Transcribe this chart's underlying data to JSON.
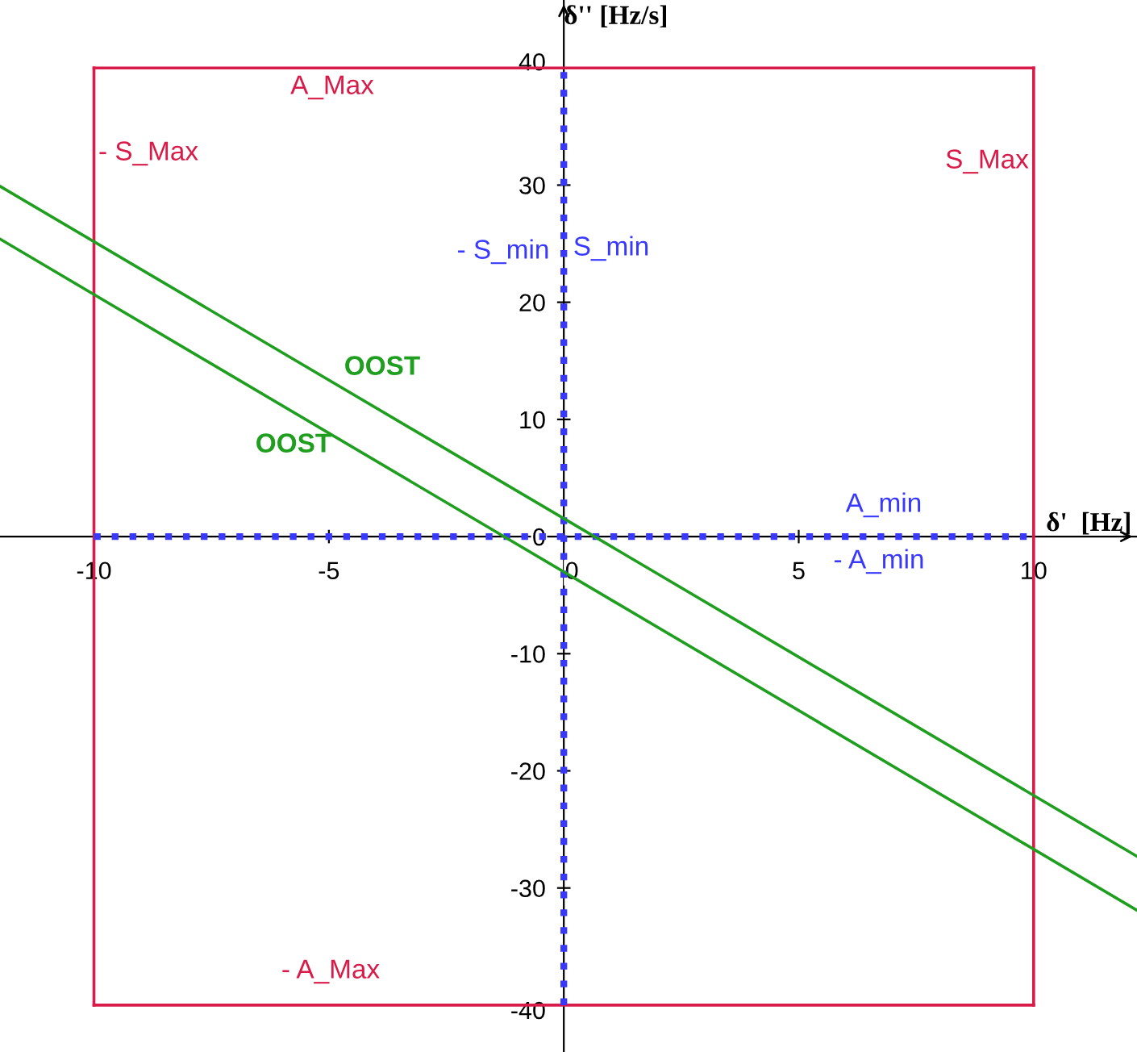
{
  "chart_data": {
    "type": "line",
    "xlabel": "δ'  [Hz]",
    "ylabel": "δ'' [Hz/s]",
    "xlim": [
      -12,
      12.2
    ],
    "ylim": [
      -44,
      45.8
    ],
    "xticks": [
      -10,
      -5,
      0,
      5,
      10
    ],
    "yticks": [
      -40,
      -30,
      -20,
      -10,
      0,
      10,
      20,
      30,
      40
    ],
    "grid": false,
    "legend": false,
    "marker": "none",
    "series": [
      {
        "color": "#d81b48",
        "line_style": "solid",
        "x": [
          -10,
          10
        ],
        "values": [
          40,
          40
        ]
      },
      {
        "color": "#d81b48",
        "line_style": "solid",
        "x": [
          -10,
          10
        ],
        "values": [
          -40,
          -40
        ]
      },
      {
        "color": "#d81b48",
        "line_style": "solid",
        "x": [
          -10,
          -10
        ],
        "values": [
          -40,
          40
        ]
      },
      {
        "color": "#d81b48",
        "line_style": "solid",
        "x": [
          10,
          10
        ],
        "values": [
          -40,
          40
        ]
      },
      {
        "color": "#3838ff",
        "line_style": "dotted",
        "x": [
          -10,
          10
        ],
        "values": [
          0,
          0
        ]
      },
      {
        "color": "#3838ff",
        "line_style": "dotted",
        "x": [
          0,
          0
        ],
        "values": [
          -40,
          40
        ]
      },
      {
        "color": "#1f9e1f",
        "line_style": "solid",
        "x": [
          -12,
          12.2
        ],
        "values": [
          29.9,
          -27.3
        ]
      },
      {
        "color": "#1f9e1f",
        "line_style": "solid",
        "x": [
          -12,
          12.2
        ],
        "values": [
          25.4,
          -31.9
        ]
      }
    ],
    "annotations": [
      "A_Max",
      "- S_Max",
      "S_Max",
      "- A_Max",
      "- S_min",
      "S_min",
      "A_min",
      "- A_min",
      "OOST",
      "OOST"
    ]
  }
}
